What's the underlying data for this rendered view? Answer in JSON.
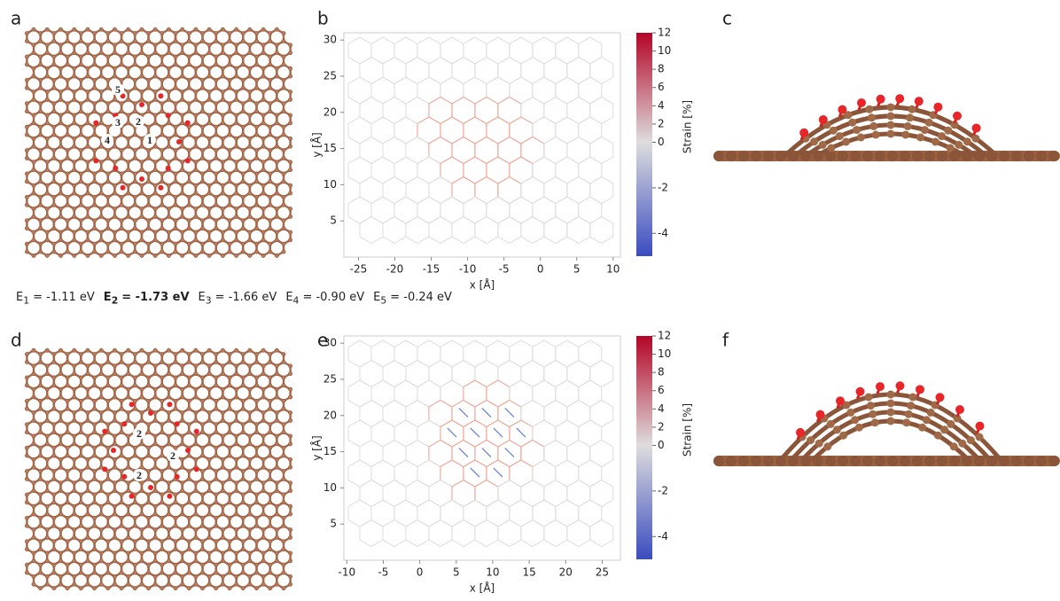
{
  "panel_labels": [
    "a",
    "b",
    "c",
    "d",
    "e",
    "f"
  ],
  "energies": [
    {
      "symbol": "E",
      "index": "1",
      "text": "= -1.11 eV",
      "bold": false
    },
    {
      "symbol": "E",
      "index": "2",
      "text": "= -1.73 eV",
      "bold": true
    },
    {
      "symbol": "E",
      "index": "3",
      "text": "= -1.66 eV",
      "bold": false
    },
    {
      "symbol": "E",
      "index": "4",
      "text": "= -0.90 eV",
      "bold": false
    },
    {
      "symbol": "E",
      "index": "5",
      "text": "= -0.24 eV",
      "bold": false
    }
  ],
  "site_labels_a": [
    "5",
    "3",
    "2",
    "4",
    "1"
  ],
  "site_labels_d": [
    "2",
    "2",
    "2"
  ],
  "strain_maps": [
    {
      "xlim": [
        -27,
        11
      ],
      "ylim": [
        0,
        31
      ],
      "xticks": [
        -25,
        -20,
        -15,
        -10,
        -5,
        0,
        5,
        10
      ],
      "yticks": [
        5,
        10,
        15,
        20,
        25,
        30
      ],
      "xlabel": "x [Å]",
      "ylabel": "y [Å]"
    },
    {
      "xlim": [
        -10.4,
        27.5
      ],
      "ylim": [
        0,
        31
      ],
      "xticks": [
        -10,
        -5,
        0,
        5,
        10,
        15,
        20,
        25
      ],
      "yticks": [
        5,
        10,
        15,
        20,
        25,
        30
      ],
      "xlabel": "x [Å]",
      "ylabel": "y [Å]"
    }
  ],
  "colorbar": {
    "label": "Strain [%]",
    "lim": [
      -5,
      12
    ],
    "center": 0,
    "ticks": [
      12,
      10,
      8,
      6,
      4,
      2,
      0,
      -2,
      -4
    ],
    "colors": [
      "#3b4cc0",
      "#dddddd",
      "#b40426"
    ]
  }
}
